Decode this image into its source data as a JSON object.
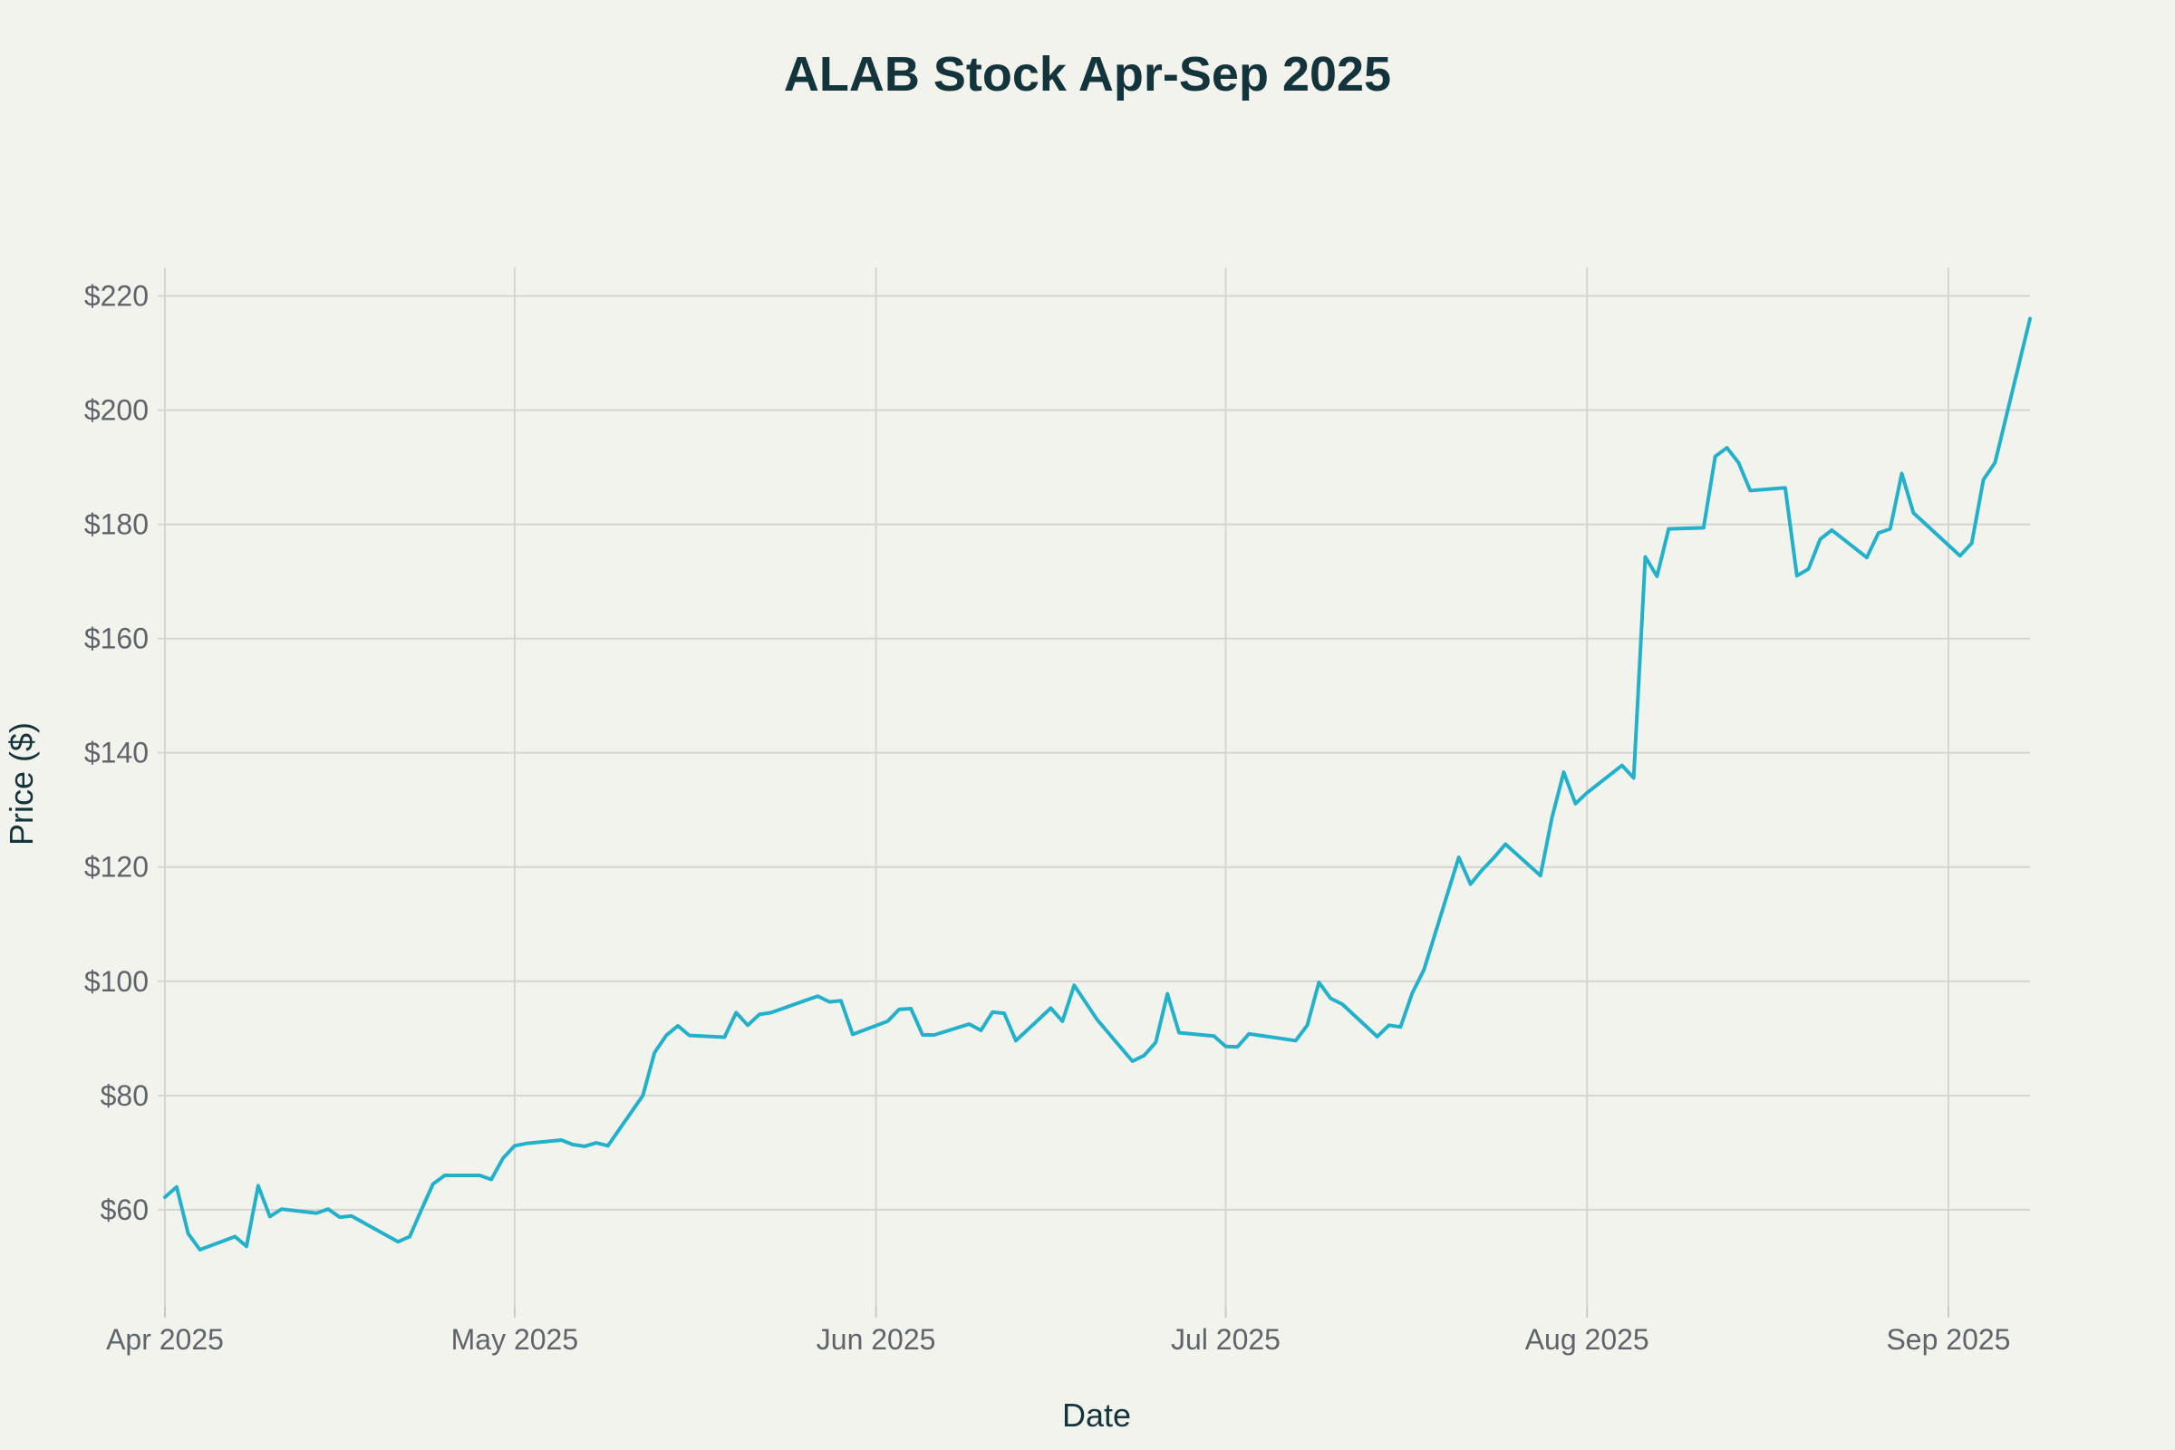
{
  "chart_data": {
    "type": "line",
    "title": "ALAB Stock Apr-Sep 2025",
    "xlabel": "Date",
    "ylabel": "Price ($)",
    "x_ticks": [
      {
        "date": "2025-04-01",
        "label": "Apr 2025"
      },
      {
        "date": "2025-05-01",
        "label": "May 2025"
      },
      {
        "date": "2025-06-01",
        "label": "Jun 2025"
      },
      {
        "date": "2025-07-01",
        "label": "Jul 2025"
      },
      {
        "date": "2025-08-01",
        "label": "Aug 2025"
      },
      {
        "date": "2025-09-01",
        "label": "Sep 2025"
      }
    ],
    "y_ticks": [
      60,
      80,
      100,
      120,
      140,
      160,
      180,
      200,
      220
    ],
    "y_tick_prefix": "$",
    "xlim": [
      "2025-04-01",
      "2025-09-08"
    ],
    "ylim": [
      43,
      225
    ],
    "grid": true,
    "line_color": "#22b1c9",
    "series": [
      {
        "x": [
          "2025-04-01",
          "2025-04-02",
          "2025-04-03",
          "2025-04-04",
          "2025-04-07",
          "2025-04-08",
          "2025-04-09",
          "2025-04-10",
          "2025-04-11",
          "2025-04-14",
          "2025-04-15",
          "2025-04-16",
          "2025-04-17",
          "2025-04-21",
          "2025-04-22",
          "2025-04-23",
          "2025-04-24",
          "2025-04-25",
          "2025-04-28",
          "2025-04-29",
          "2025-04-30",
          "2025-05-01",
          "2025-05-02",
          "2025-05-05",
          "2025-05-06",
          "2025-05-07",
          "2025-05-08",
          "2025-05-09",
          "2025-05-12",
          "2025-05-13",
          "2025-05-14",
          "2025-05-15",
          "2025-05-16",
          "2025-05-19",
          "2025-05-20",
          "2025-05-21",
          "2025-05-22",
          "2025-05-23",
          "2025-05-27",
          "2025-05-28",
          "2025-05-29",
          "2025-05-30",
          "2025-06-02",
          "2025-06-03",
          "2025-06-04",
          "2025-06-05",
          "2025-06-06",
          "2025-06-09",
          "2025-06-10",
          "2025-06-11",
          "2025-06-12",
          "2025-06-13",
          "2025-06-16",
          "2025-06-17",
          "2025-06-18",
          "2025-06-20",
          "2025-06-23",
          "2025-06-24",
          "2025-06-25",
          "2025-06-26",
          "2025-06-27",
          "2025-06-30",
          "2025-07-01",
          "2025-07-02",
          "2025-07-03",
          "2025-07-07",
          "2025-07-08",
          "2025-07-09",
          "2025-07-10",
          "2025-07-11",
          "2025-07-14",
          "2025-07-15",
          "2025-07-16",
          "2025-07-17",
          "2025-07-18",
          "2025-07-21",
          "2025-07-22",
          "2025-07-23",
          "2025-07-24",
          "2025-07-25",
          "2025-07-28",
          "2025-07-29",
          "2025-07-30",
          "2025-07-31",
          "2025-08-01",
          "2025-08-04",
          "2025-08-05",
          "2025-08-06",
          "2025-08-07",
          "2025-08-08",
          "2025-08-11",
          "2025-08-12",
          "2025-08-13",
          "2025-08-14",
          "2025-08-15",
          "2025-08-18",
          "2025-08-19",
          "2025-08-20",
          "2025-08-21",
          "2025-08-22",
          "2025-08-25",
          "2025-08-26",
          "2025-08-27",
          "2025-08-28",
          "2025-08-29",
          "2025-09-02",
          "2025-09-03",
          "2025-09-04",
          "2025-09-05",
          "2025-09-08"
        ],
        "values": [
          62.2,
          64.0,
          55.8,
          53.0,
          55.3,
          53.6,
          64.2,
          58.8,
          60.1,
          59.4,
          60.1,
          58.7,
          58.9,
          54.4,
          55.3,
          60.0,
          64.5,
          66.0,
          66.0,
          65.3,
          69.0,
          71.2,
          71.6,
          72.2,
          71.4,
          71.1,
          71.7,
          71.2,
          80.0,
          87.5,
          90.5,
          92.2,
          90.5,
          90.2,
          94.5,
          92.3,
          94.2,
          94.5,
          97.4,
          96.4,
          96.6,
          90.7,
          93.0,
          95.1,
          95.2,
          90.6,
          90.6,
          92.5,
          91.4,
          94.6,
          94.4,
          89.6,
          95.3,
          93.0,
          99.3,
          93.2,
          86.0,
          87.0,
          89.3,
          97.8,
          91.0,
          90.4,
          88.6,
          88.5,
          90.8,
          89.6,
          92.3,
          99.8,
          97.0,
          96.0,
          90.3,
          92.3,
          92.0,
          97.9,
          102.0,
          121.7,
          117.0,
          119.5,
          121.6,
          124.0,
          118.5,
          128.7,
          136.6,
          131.1,
          133.0,
          137.8,
          135.6,
          174.3,
          170.9,
          179.2,
          179.4,
          191.9,
          193.4,
          190.8,
          185.9,
          186.4,
          171.0,
          172.2,
          177.4,
          179.0,
          174.2,
          178.5,
          179.2,
          188.9,
          182.0,
          174.5,
          176.7,
          187.8,
          190.8,
          216.0
        ]
      }
    ]
  }
}
